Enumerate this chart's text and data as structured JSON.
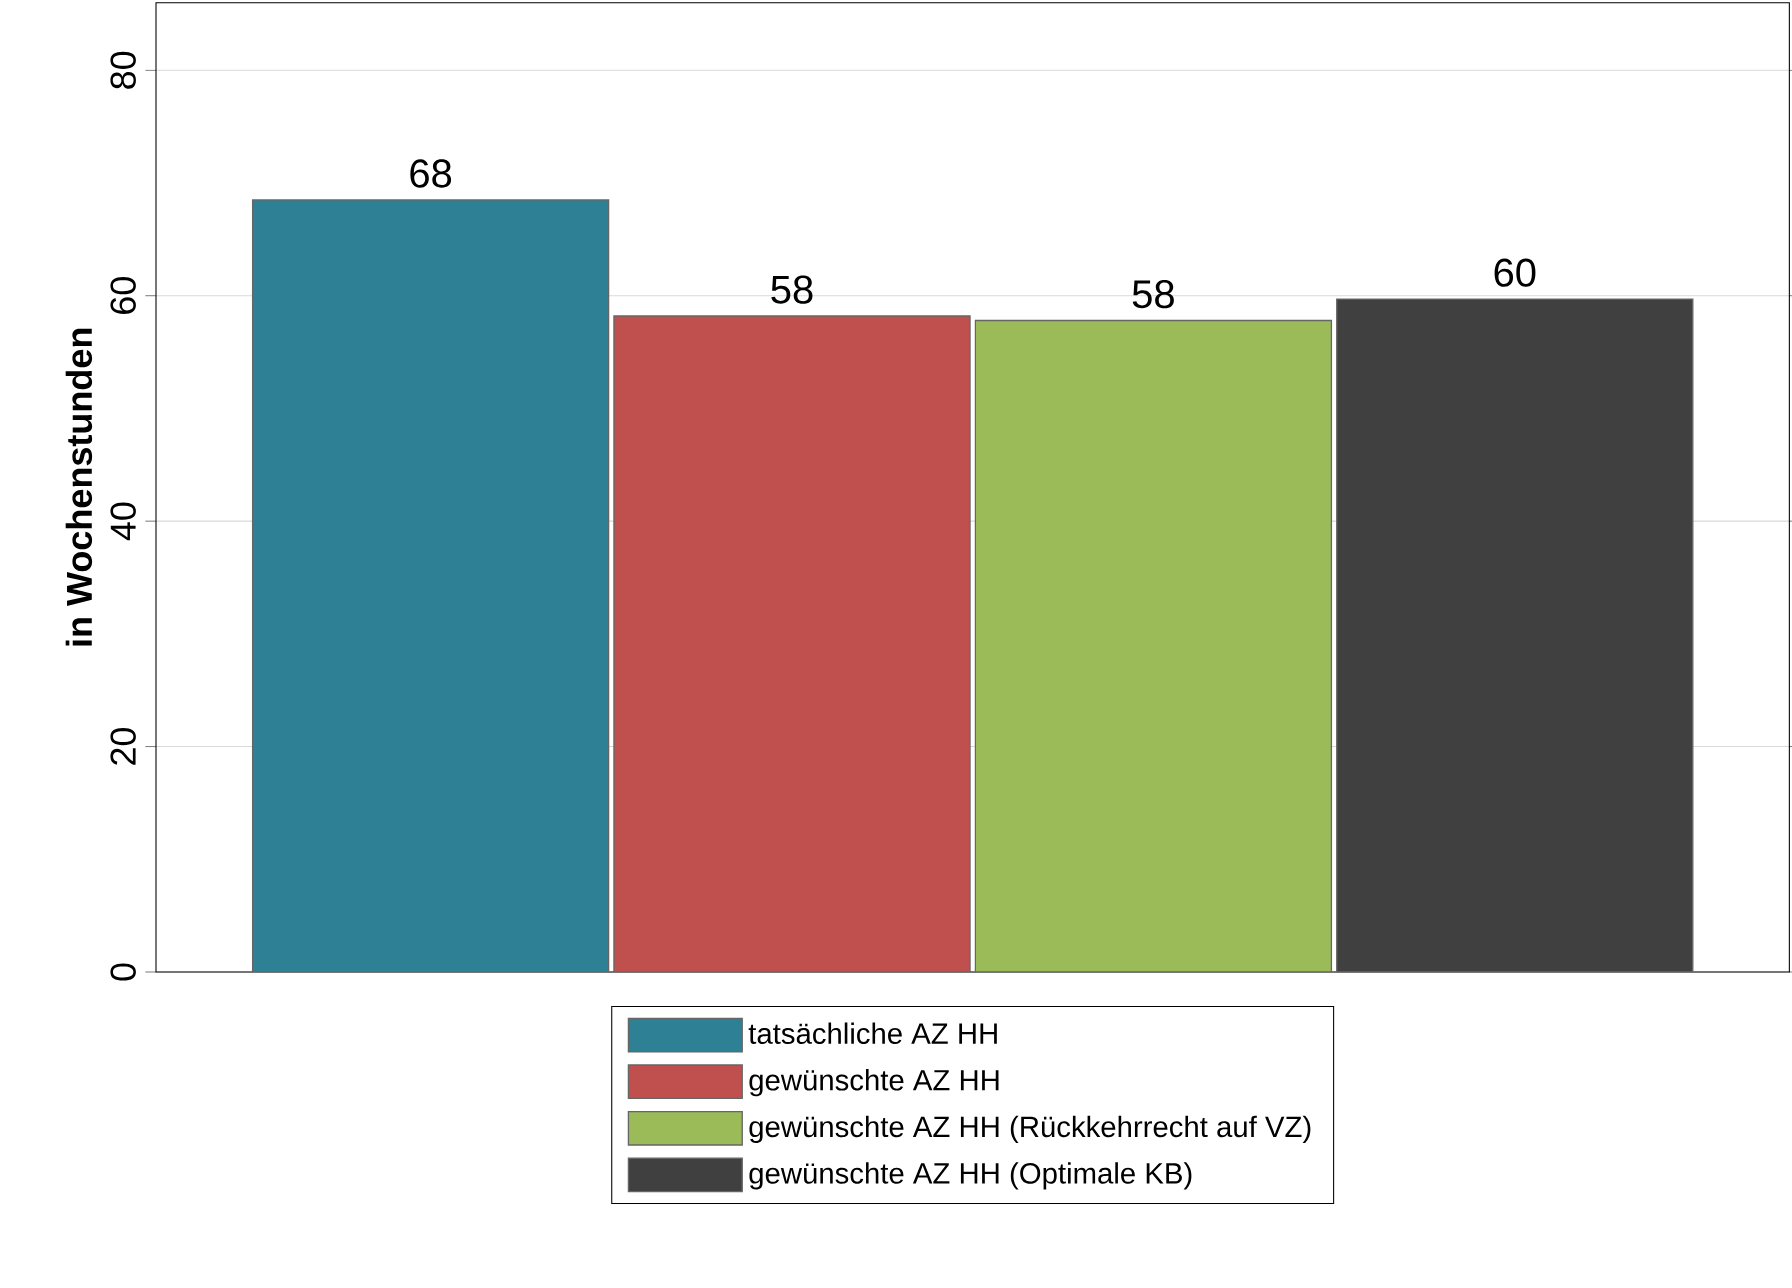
{
  "chart_data": {
    "type": "bar",
    "ylabel": "in Wochenstunden",
    "categories": [
      null
    ],
    "series": [
      {
        "name": "tatsächliche AZ HH",
        "color": "#2e8195",
        "values": [
          68.5
        ],
        "value_labels": [
          "68"
        ]
      },
      {
        "name": "gewünschte AZ HH",
        "color": "#c0504d",
        "values": [
          58.2
        ],
        "value_labels": [
          "58"
        ]
      },
      {
        "name": "gewünschte AZ HH (Rückkehrrecht auf VZ)",
        "color": "#9bbb59",
        "values": [
          57.8
        ],
        "value_labels": [
          "58"
        ]
      },
      {
        "name": "gewünschte AZ HH (Optimale KB)",
        "color": "#404040",
        "values": [
          59.7
        ],
        "value_labels": [
          "60"
        ]
      }
    ],
    "ylim": [
      0,
      86
    ],
    "yticks": [
      0,
      20,
      40,
      60,
      80
    ],
    "grid": "y",
    "legend": "bottom"
  }
}
